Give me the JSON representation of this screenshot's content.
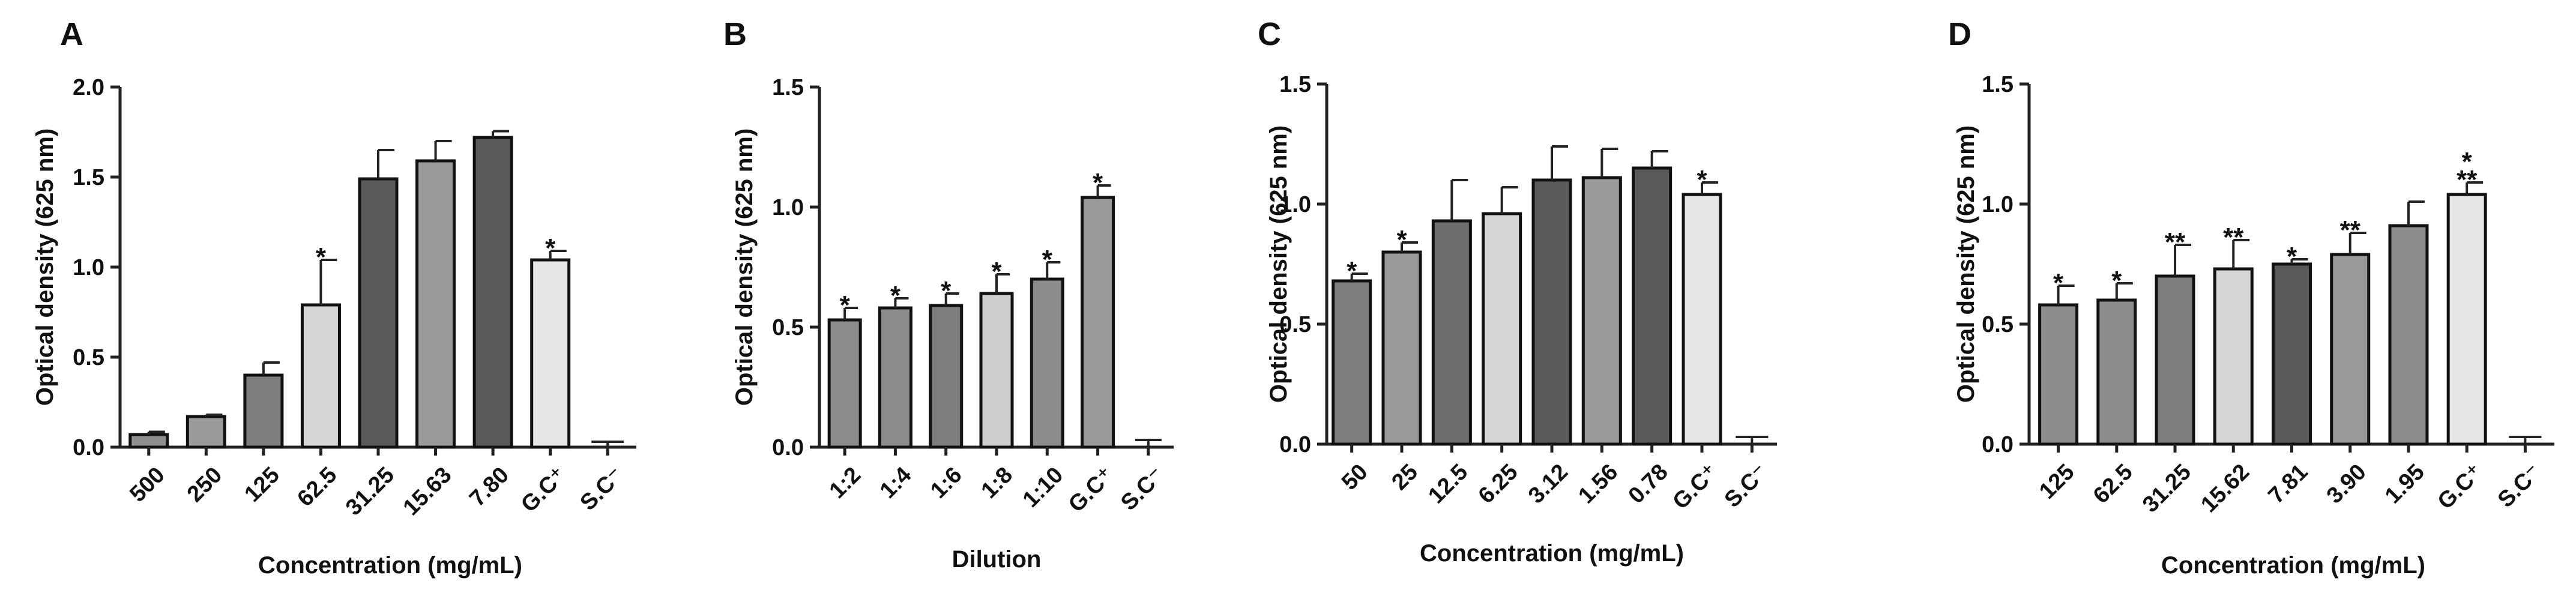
{
  "chart_data": [
    {
      "panel": "A",
      "type": "bar",
      "ylabel": "Optical density (625 nm)",
      "xlabel": "Concentration (mg/mL)",
      "ylim": [
        0,
        2.0
      ],
      "yticks": [
        "0.0",
        "0.5",
        "1.0",
        "1.5",
        "2.0"
      ],
      "categories": [
        "500",
        "250",
        "125",
        "62.5",
        "31.25",
        "15.63",
        "7.80",
        "G.C⁺",
        "S.C⁻"
      ],
      "values": [
        0.07,
        0.17,
        0.4,
        0.79,
        1.49,
        1.59,
        1.72,
        1.04,
        0.0
      ],
      "errors": [
        0.015,
        0.01,
        0.07,
        0.25,
        0.16,
        0.11,
        0.035,
        0.05,
        0.03
      ],
      "significance": [
        "",
        "",
        "",
        "*",
        "",
        "",
        "",
        "*",
        ""
      ],
      "fills": [
        "#8f8f8f",
        "#9a9a9a",
        "#7d7d7d",
        "#d6d6d6",
        "#5a5a5a",
        "#9a9a9a",
        "#5a5a5a",
        "#e6e6e6",
        "#e6e6e6"
      ]
    },
    {
      "panel": "B",
      "type": "bar",
      "ylabel": "Optical density (625 nm)",
      "xlabel": "Dilution",
      "ylim": [
        0,
        1.5
      ],
      "yticks": [
        "0.0",
        "0.5",
        "1.0",
        "1.5"
      ],
      "categories": [
        "1:2",
        "1:4",
        "1:6",
        "1:8",
        "1:10",
        "G.C⁺",
        "S.C⁻"
      ],
      "values": [
        0.53,
        0.58,
        0.59,
        0.64,
        0.7,
        1.04,
        0.0
      ],
      "errors": [
        0.05,
        0.04,
        0.05,
        0.08,
        0.07,
        0.05,
        0.03
      ],
      "significance": [
        "*",
        "*",
        "*",
        "*",
        "*",
        "*",
        ""
      ],
      "fills": [
        "#8c8c8c",
        "#8c8c8c",
        "#7d7d7d",
        "#cfcfcf",
        "#8c8c8c",
        "#9a9a9a",
        "#e6e6e6"
      ]
    },
    {
      "panel": "C",
      "type": "bar",
      "ylabel": "Optical density (625 nm)",
      "xlabel": "Concentration (mg/mL)",
      "ylim": [
        0,
        1.5
      ],
      "yticks": [
        "0.0",
        "0.5",
        "1.0",
        "1.5"
      ],
      "categories": [
        "50",
        "25",
        "12.5",
        "6.25",
        "3.12",
        "1.56",
        "0.78",
        "G.C⁺",
        "S.C⁻"
      ],
      "values": [
        0.68,
        0.8,
        0.93,
        0.96,
        1.1,
        1.11,
        1.15,
        1.04,
        0.0
      ],
      "errors": [
        0.03,
        0.04,
        0.17,
        0.11,
        0.14,
        0.12,
        0.07,
        0.05,
        0.03
      ],
      "significance": [
        "*",
        "*",
        "",
        "",
        "",
        "",
        "",
        "*",
        ""
      ],
      "fills": [
        "#7d7d7d",
        "#9a9a9a",
        "#6e6e6e",
        "#d6d6d6",
        "#5a5a5a",
        "#9a9a9a",
        "#5a5a5a",
        "#e6e6e6",
        "#e6e6e6"
      ]
    },
    {
      "panel": "D",
      "type": "bar",
      "ylabel": "Optical density (625 nm)",
      "xlabel": "Concentration (mg/mL)",
      "ylim": [
        0,
        1.5
      ],
      "yticks": [
        "0.0",
        "0.5",
        "1.0",
        "1.5"
      ],
      "categories": [
        "125",
        "62.5",
        "31.25",
        "15.62",
        "7.81",
        "3.90",
        "1.95",
        "G.C⁺",
        "S.C⁻"
      ],
      "values": [
        0.58,
        0.6,
        0.7,
        0.73,
        0.75,
        0.79,
        0.91,
        1.04,
        0.0
      ],
      "errors": [
        0.08,
        0.07,
        0.13,
        0.12,
        0.02,
        0.09,
        0.1,
        0.05,
        0.03
      ],
      "significance": [
        "*",
        "*",
        "**",
        "**",
        "*",
        "**",
        "",
        "*\n**",
        ""
      ],
      "fills": [
        "#8c8c8c",
        "#8c8c8c",
        "#7d7d7d",
        "#d6d6d6",
        "#5a5a5a",
        "#9a9a9a",
        "#8c8c8c",
        "#e6e6e6",
        "#e6e6e6"
      ]
    }
  ]
}
